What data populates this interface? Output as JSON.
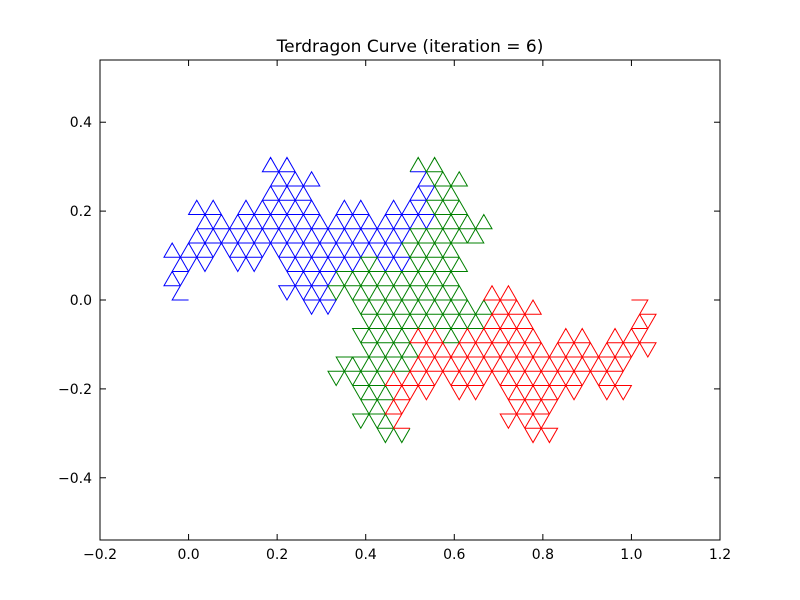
{
  "chart_data": {
    "type": "line",
    "title": "Terdragon Curve  (iteration = 6)",
    "xlabel": "",
    "ylabel": "",
    "xlim": [
      -0.2,
      1.2
    ],
    "ylim": [
      -0.54,
      0.54
    ],
    "x_ticks": [
      -0.2,
      0.0,
      0.2,
      0.4,
      0.6,
      0.8,
      1.0,
      1.2
    ],
    "x_tick_labels": [
      "−0.2",
      "0.0",
      "0.2",
      "0.4",
      "0.6",
      "0.8",
      "1.0",
      "1.2"
    ],
    "y_ticks": [
      -0.4,
      -0.2,
      0.0,
      0.2,
      0.4
    ],
    "y_tick_labels": [
      "−0.4",
      "−0.2",
      "0.0",
      "0.2",
      "0.4"
    ],
    "grid": false,
    "iteration": 6,
    "start": [
      0,
      0
    ],
    "end": [
      1,
      0
    ],
    "curve_turns_deg": [
      120,
      -120
    ],
    "series": [
      {
        "segments": "first third",
        "color": "#0000ff"
      },
      {
        "segments": "second third",
        "color": "#008000"
      },
      {
        "segments": "final third",
        "color": "#ff0000"
      }
    ]
  }
}
